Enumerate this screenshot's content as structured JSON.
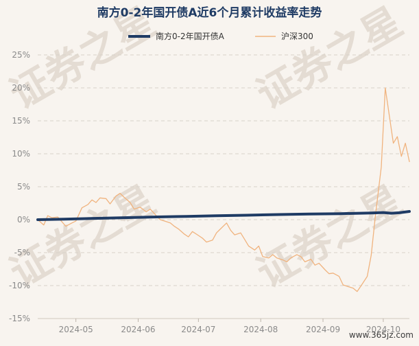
{
  "watermark": {
    "text": "证券之星",
    "url": "www.365jz.com"
  },
  "chart_data": {
    "type": "line",
    "title": "南方0-2年国开债A近6个月累计收益率走势",
    "xlabel": "",
    "ylabel": "",
    "x_tick_labels": [
      "2024-05",
      "2024-06",
      "2024-07",
      "2024-08",
      "2024-09",
      "2024-10"
    ],
    "y_tick_labels": [
      "25%",
      "20%",
      "15%",
      "10%",
      "5%",
      "0%",
      "-5%",
      "-10%",
      "-15%"
    ],
    "y_ticks": [
      25,
      20,
      15,
      10,
      5,
      0,
      -5,
      -10,
      -15
    ],
    "ylim": [
      -15,
      25
    ],
    "x_range": [
      "2024-04-12",
      "2024-10-14"
    ],
    "grid": "horizontal dashed",
    "legend_position": "top-center",
    "series": [
      {
        "name": "南方0-2年国开债A",
        "color": "#1f3b64",
        "points": [
          [
            "2024-04-12",
            0.0
          ],
          [
            "2024-04-25",
            0.08
          ],
          [
            "2024-05-10",
            0.2
          ],
          [
            "2024-05-25",
            0.3
          ],
          [
            "2024-06-10",
            0.42
          ],
          [
            "2024-06-25",
            0.5
          ],
          [
            "2024-07-10",
            0.6
          ],
          [
            "2024-07-25",
            0.68
          ],
          [
            "2024-08-10",
            0.78
          ],
          [
            "2024-08-25",
            0.85
          ],
          [
            "2024-09-10",
            0.92
          ],
          [
            "2024-09-25",
            1.02
          ],
          [
            "2024-10-01",
            1.08
          ],
          [
            "2024-10-05",
            0.98
          ],
          [
            "2024-10-09",
            1.05
          ],
          [
            "2024-10-14",
            1.25
          ]
        ]
      },
      {
        "name": "沪深300",
        "color": "#f0b37e",
        "points": [
          [
            "2024-04-12",
            0.0
          ],
          [
            "2024-04-15",
            -0.8
          ],
          [
            "2024-04-17",
            0.6
          ],
          [
            "2024-04-19",
            0.3
          ],
          [
            "2024-04-22",
            0.4
          ],
          [
            "2024-04-24",
            -0.3
          ],
          [
            "2024-04-26",
            -1.0
          ],
          [
            "2024-04-29",
            -0.5
          ],
          [
            "2024-05-01",
            -0.2
          ],
          [
            "2024-05-04",
            1.8
          ],
          [
            "2024-05-07",
            2.3
          ],
          [
            "2024-05-09",
            3.0
          ],
          [
            "2024-05-11",
            2.6
          ],
          [
            "2024-05-13",
            3.3
          ],
          [
            "2024-05-16",
            3.2
          ],
          [
            "2024-05-18",
            2.4
          ],
          [
            "2024-05-21",
            3.6
          ],
          [
            "2024-05-23",
            4.0
          ],
          [
            "2024-05-25",
            3.4
          ],
          [
            "2024-05-28",
            2.6
          ],
          [
            "2024-05-30",
            1.6
          ],
          [
            "2024-06-02",
            1.9
          ],
          [
            "2024-06-05",
            1.2
          ],
          [
            "2024-06-07",
            1.6
          ],
          [
            "2024-06-10",
            0.6
          ],
          [
            "2024-06-12",
            0.0
          ],
          [
            "2024-06-14",
            -0.2
          ],
          [
            "2024-06-17",
            -0.5
          ],
          [
            "2024-06-19",
            -1.0
          ],
          [
            "2024-06-21",
            -1.4
          ],
          [
            "2024-06-24",
            -2.2
          ],
          [
            "2024-06-26",
            -2.6
          ],
          [
            "2024-06-28",
            -1.8
          ],
          [
            "2024-07-01",
            -2.4
          ],
          [
            "2024-07-03",
            -2.8
          ],
          [
            "2024-07-05",
            -3.4
          ],
          [
            "2024-07-08",
            -3.1
          ],
          [
            "2024-07-10",
            -2.0
          ],
          [
            "2024-07-12",
            -1.4
          ],
          [
            "2024-07-15",
            -0.5
          ],
          [
            "2024-07-17",
            -1.6
          ],
          [
            "2024-07-19",
            -2.3
          ],
          [
            "2024-07-22",
            -2.0
          ],
          [
            "2024-07-24",
            -3.0
          ],
          [
            "2024-07-26",
            -4.0
          ],
          [
            "2024-07-29",
            -4.6
          ],
          [
            "2024-07-31",
            -4.0
          ],
          [
            "2024-08-02",
            -5.6
          ],
          [
            "2024-08-05",
            -5.8
          ],
          [
            "2024-08-07",
            -5.3
          ],
          [
            "2024-08-09",
            -5.8
          ],
          [
            "2024-08-12",
            -6.1
          ],
          [
            "2024-08-14",
            -6.4
          ],
          [
            "2024-08-16",
            -5.8
          ],
          [
            "2024-08-19",
            -5.3
          ],
          [
            "2024-08-21",
            -5.6
          ],
          [
            "2024-08-23",
            -6.4
          ],
          [
            "2024-08-26",
            -6.0
          ],
          [
            "2024-08-28",
            -6.9
          ],
          [
            "2024-08-30",
            -6.6
          ],
          [
            "2024-09-02",
            -7.6
          ],
          [
            "2024-09-04",
            -8.2
          ],
          [
            "2024-09-06",
            -8.1
          ],
          [
            "2024-09-09",
            -8.6
          ],
          [
            "2024-09-11",
            -9.9
          ],
          [
            "2024-09-13",
            -10.1
          ],
          [
            "2024-09-16",
            -10.4
          ],
          [
            "2024-09-18",
            -10.9
          ],
          [
            "2024-09-20",
            -10.0
          ],
          [
            "2024-09-23",
            -8.6
          ],
          [
            "2024-09-25",
            -5.4
          ],
          [
            "2024-09-27",
            0.4
          ],
          [
            "2024-09-30",
            8.0
          ],
          [
            "2024-10-02",
            20.0
          ],
          [
            "2024-10-04",
            15.8
          ],
          [
            "2024-10-06",
            11.6
          ],
          [
            "2024-10-08",
            12.6
          ],
          [
            "2024-10-10",
            9.6
          ],
          [
            "2024-10-12",
            11.6
          ],
          [
            "2024-10-14",
            8.8
          ]
        ]
      }
    ]
  }
}
